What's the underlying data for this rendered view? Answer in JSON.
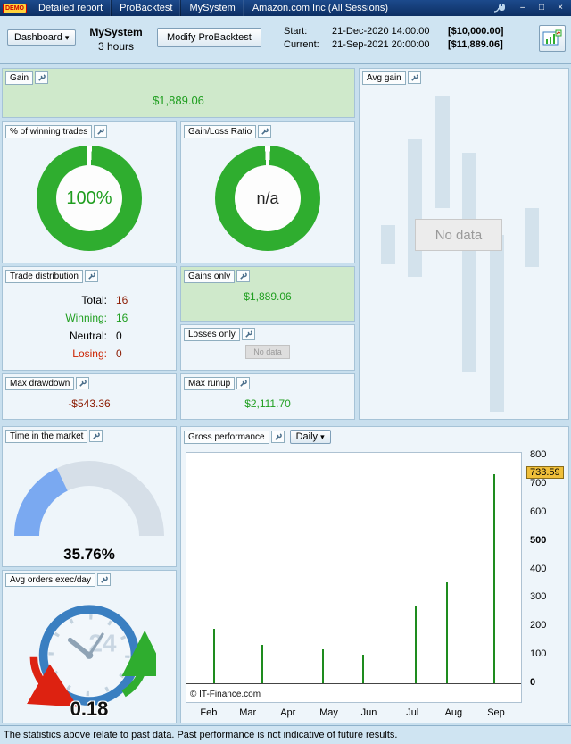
{
  "title_bar": {
    "logo": "DEMO",
    "tabs": [
      {
        "label": "Detailed report"
      },
      {
        "label": "ProBacktest"
      },
      {
        "label": "MySystem"
      }
    ],
    "title": "Amazon.com Inc (All Sessions)",
    "window_icons": {
      "minimize": "–",
      "maximize": "□",
      "close": "×"
    }
  },
  "toolbar": {
    "dashboard_label": "Dashboard",
    "dropdown_arrow": "▾",
    "system_name": "MySystem",
    "system_timeframe": "3 hours",
    "modify_button": "Modify ProBacktest",
    "start_label": "Start:",
    "start_datetime": "21-Dec-2020 14:00:00",
    "start_amount": "[$10,000.00]",
    "current_label": "Current:",
    "current_datetime": "21-Sep-2021 20:00:00",
    "current_amount": "[$11,889.06]"
  },
  "panels": {
    "gain": {
      "title": "Gain",
      "value": "$1,889.06"
    },
    "avg_gain": {
      "title": "Avg gain",
      "no_data": "No data",
      "placeholder_bars": [
        {
          "x": 0.09,
          "y": 0.42,
          "h": 0.12
        },
        {
          "x": 0.22,
          "y": 0.16,
          "h": 0.42
        },
        {
          "x": 0.36,
          "y": 0.03,
          "h": 0.34
        },
        {
          "x": 0.49,
          "y": 0.2,
          "h": 0.67
        },
        {
          "x": 0.63,
          "y": 0.45,
          "h": 0.54
        },
        {
          "x": 0.8,
          "y": 0.37,
          "h": 0.18
        }
      ]
    },
    "winning_trades": {
      "title": "% of winning trades",
      "value": "100%",
      "percent": 100
    },
    "gain_loss_ratio": {
      "title": "Gain/Loss Ratio",
      "value": "n/a"
    },
    "trade_distribution": {
      "title": "Trade distribution",
      "rows": [
        {
          "label": "Total:",
          "value": "16",
          "label_color": "#000000",
          "value_color": "#8b1a00"
        },
        {
          "label": "Winning:",
          "value": "16",
          "label_color": "#1f9e1f",
          "value_color": "#1f9e1f"
        },
        {
          "label": "Neutral:",
          "value": "0",
          "label_color": "#000000",
          "value_color": "#000000"
        },
        {
          "label": "Losing:",
          "value": "0",
          "label_color": "#cc2200",
          "value_color": "#8b1a00"
        }
      ]
    },
    "gains_only": {
      "title": "Gains only",
      "value": "$1,889.06"
    },
    "losses_only": {
      "title": "Losses only",
      "no_data": "No data"
    },
    "max_drawdown": {
      "title": "Max drawdown",
      "value": "-$543.36"
    },
    "max_runup": {
      "title": "Max runup",
      "value": "$2,111.70"
    },
    "time_in_market": {
      "title": "Time in the market",
      "value": "35.76%",
      "percent": 35.76
    },
    "gross_performance": {
      "title": "Gross performance",
      "period": "Daily",
      "last_value": "733.59",
      "copyright": "© IT-Finance.com"
    },
    "avg_orders": {
      "title": "Avg orders exec/day",
      "value": "0.18",
      "clock_label": "24"
    }
  },
  "chart_data": {
    "type": "bar",
    "title": "Gross performance",
    "period": "Daily",
    "xlabel": "",
    "ylabel": "",
    "ylim": [
      0,
      800
    ],
    "grid": false,
    "legend_position": "none",
    "yticks": [
      800,
      700,
      600,
      500,
      400,
      300,
      200,
      100,
      0
    ],
    "bold_yticks": [
      500,
      0
    ],
    "xticks": [
      {
        "label": "Feb",
        "pos": 0.069
      },
      {
        "label": "Mar",
        "pos": 0.186
      },
      {
        "label": "Apr",
        "pos": 0.306
      },
      {
        "label": "May",
        "pos": 0.428
      },
      {
        "label": "Jun",
        "pos": 0.548
      },
      {
        "label": "Jul",
        "pos": 0.678
      },
      {
        "label": "Aug",
        "pos": 0.801
      },
      {
        "label": "Sep",
        "pos": 0.928
      }
    ],
    "points": [
      {
        "pos": 0.082,
        "value": 190
      },
      {
        "pos": 0.226,
        "value": 135
      },
      {
        "pos": 0.407,
        "value": 118
      },
      {
        "pos": 0.527,
        "value": 100
      },
      {
        "pos": 0.686,
        "value": 272
      },
      {
        "pos": 0.779,
        "value": 356
      },
      {
        "pos": 0.92,
        "value": 733.59
      }
    ],
    "last_value_label": "733.59"
  },
  "status_bar": {
    "text": "The statistics above relate to past data. Past performance is not indicative of future results."
  },
  "colors": {
    "green": "#1f9e1f",
    "red": "#cc2200",
    "dark_red": "#8b1a00",
    "donut_green": "#2fad2f",
    "gauge_blue": "#7aa9f1",
    "gauge_track": "#d6dfe8",
    "panel_green_bg": "#cfe9cb",
    "bar_green": "#1e8c1e",
    "placeholder_bar": "#d3e2ec",
    "highlight_yellow": "#f0bf3a"
  }
}
